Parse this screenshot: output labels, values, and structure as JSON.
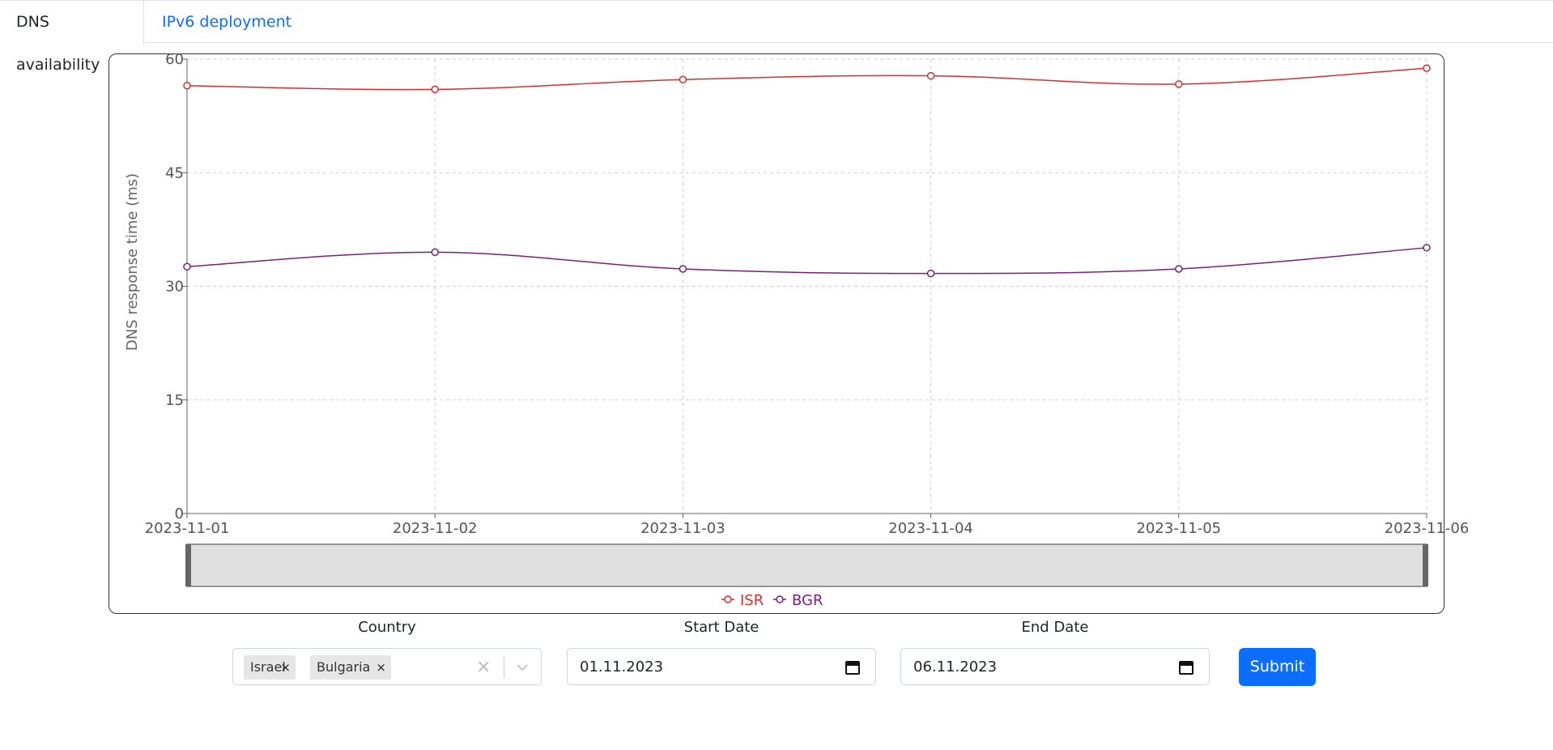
{
  "tabs": [
    {
      "label": "DNS availability",
      "active": true
    },
    {
      "label": "IPv6 deployment",
      "active": false
    }
  ],
  "chart_data": {
    "type": "line",
    "title": "",
    "xlabel": "",
    "ylabel": "DNS response time (ms)",
    "x": [
      "2023-11-01",
      "2023-11-02",
      "2023-11-03",
      "2023-11-04",
      "2023-11-05",
      "2023-11-06"
    ],
    "ylim": [
      0,
      60
    ],
    "yticks": [
      0,
      15,
      30,
      45,
      60
    ],
    "grid": true,
    "legend_position": "bottom",
    "brush": true,
    "series": [
      {
        "name": "ISR",
        "color": "#d32f2f",
        "values": [
          56.5,
          56.0,
          57.3,
          57.8,
          56.7,
          58.8
        ]
      },
      {
        "name": "BGR",
        "color": "#7b1f7b",
        "values": [
          32.6,
          34.5,
          32.3,
          31.7,
          32.3,
          35.1
        ]
      }
    ]
  },
  "form": {
    "country_label": "Country",
    "countries": [
      "Israel",
      "Bulgaria"
    ],
    "chip_remove": "×",
    "clear_all": "×",
    "start_label": "Start Date",
    "start_value": "01.11.2023",
    "end_label": "End Date",
    "end_value": "06.11.2023",
    "submit_label": "Submit"
  },
  "colors": {
    "accent": "#0d6efd",
    "isr": "#d32f2f",
    "bgr": "#7b1f7b"
  }
}
